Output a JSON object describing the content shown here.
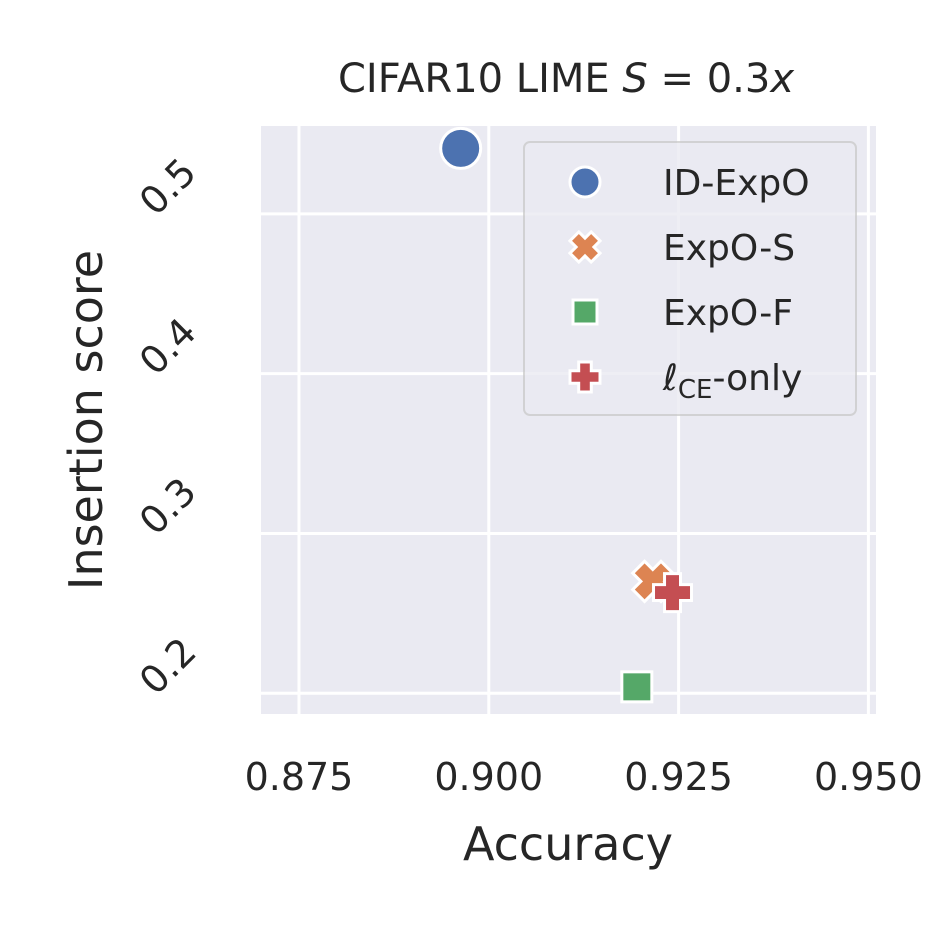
{
  "chart_data": {
    "type": "scatter",
    "title_prefix": "CIFAR10 LIME ",
    "title_math": "S",
    "title_eq": " = 0.3",
    "title_var": "x",
    "xlabel": "Accuracy",
    "ylabel": "Insertion score",
    "xlim": [
      0.87,
      0.951
    ],
    "ylim": [
      0.187,
      0.555
    ],
    "xticks": [
      0.875,
      0.9,
      0.925,
      0.95
    ],
    "xtick_labels": [
      "0.875",
      "0.900",
      "0.925",
      "0.950"
    ],
    "yticks": [
      0.2,
      0.3,
      0.4,
      0.5
    ],
    "ytick_labels": [
      "0.2",
      "0.3",
      "0.4",
      "0.5"
    ],
    "grid": true,
    "legend_position": "top-right",
    "series": [
      {
        "name": "ID-ExpO",
        "marker": "circle",
        "color": "#4c72b0",
        "x": 0.8963,
        "y": 0.541
      },
      {
        "name": "ExpO-S",
        "marker": "x",
        "color": "#dd8452",
        "x": 0.9216,
        "y": 0.27
      },
      {
        "name": "ExpO-F",
        "marker": "square",
        "color": "#55a868",
        "x": 0.9195,
        "y": 0.204
      },
      {
        "name": "-only",
        "name_prefix": "ℓ",
        "name_sub": "CE",
        "marker": "plus",
        "color": "#c44e52",
        "x": 0.9242,
        "y": 0.263
      }
    ]
  }
}
